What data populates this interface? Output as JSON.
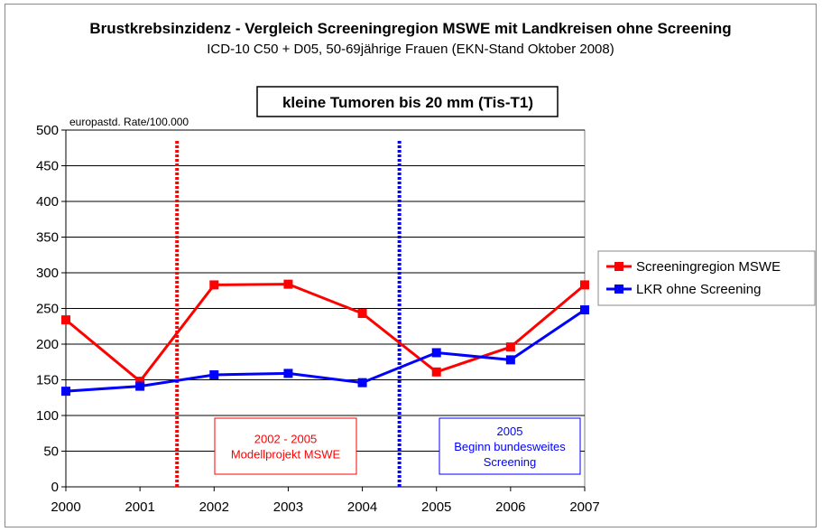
{
  "chart_data": {
    "type": "line",
    "title": "Brustkrebsinzidenz - Vergleich Screeningregion MSWE mit Landkreisen ohne Screening",
    "subtitle": "ICD-10 C50 + D05, 50-69jährige Frauen (EKN-Stand Oktober 2008)",
    "inner_title": "kleine Tumoren bis 20 mm (Tis-T1)",
    "ylabel": "europastd. Rate/100.000",
    "xlabel": "",
    "x": [
      "2000",
      "2001",
      "2002",
      "2003",
      "2004",
      "2005",
      "2006",
      "2007"
    ],
    "ylim": [
      0,
      500
    ],
    "yticks": [
      0,
      50,
      100,
      150,
      200,
      250,
      300,
      350,
      400,
      450,
      500
    ],
    "grid": "horizontal",
    "legend_position": "right",
    "series": [
      {
        "name": "Screeningregion MSWE",
        "color": "#ff0000",
        "values": [
          234,
          148,
          283,
          284,
          243,
          161,
          196,
          283
        ]
      },
      {
        "name": "LKR ohne Screening",
        "color": "#0000ff",
        "values": [
          134,
          141,
          157,
          159,
          146,
          188,
          178,
          248
        ]
      }
    ],
    "markers": [
      {
        "x_between": [
          "2001",
          "2002"
        ],
        "color": "#ff0000"
      },
      {
        "x_between": [
          "2004",
          "2005"
        ],
        "color": "#0000ff"
      }
    ],
    "annotations": [
      {
        "lines": [
          "2002 - 2005",
          "Modellprojekt MSWE"
        ],
        "color": "#ff0000"
      },
      {
        "lines": [
          "2005",
          "Beginn bundesweites",
          "Screening"
        ],
        "color": "#0000ff"
      }
    ]
  }
}
